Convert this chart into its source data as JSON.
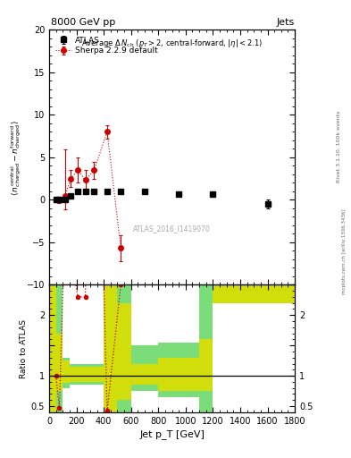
{
  "title_left": "8000 GeV pp",
  "title_right": "Jets",
  "annotation": "ATLAS_2016_I1419070",
  "right_label1": "Rivet 3.1.10, 100k events",
  "right_label2": "mcplots.cern.ch [arXiv:1306.3436]",
  "main_title": "Average Δ N_{ch} (p_T>2, central-forward, |η| < 2.1)",
  "ylabel_ratio": "Ratio to ATLAS",
  "xlabel": "Jet p_T [GeV]",
  "xlim": [
    0,
    1800
  ],
  "ylim_main": [
    -10,
    20
  ],
  "ylim_ratio": [
    0.4,
    2.5
  ],
  "atlas_x": [
    50,
    75,
    115,
    160,
    210,
    265,
    330,
    425,
    525,
    700,
    950,
    1200,
    1600
  ],
  "atlas_y": [
    0.0,
    0.0,
    0.0,
    0.5,
    1.0,
    1.0,
    1.0,
    1.0,
    1.0,
    1.0,
    0.7,
    0.7,
    -0.5
  ],
  "atlas_yerr": [
    0.15,
    0.15,
    0.15,
    0.2,
    0.2,
    0.2,
    0.2,
    0.2,
    0.2,
    0.2,
    0.3,
    0.3,
    0.5
  ],
  "sherpa_x": [
    50,
    75,
    115,
    160,
    210,
    265,
    330,
    425,
    525
  ],
  "sherpa_y": [
    0.0,
    -0.1,
    0.4,
    2.5,
    3.5,
    2.3,
    3.5,
    8.0,
    -5.7
  ],
  "sherpa_yerr_lo": [
    0.2,
    0.3,
    1.5,
    1.0,
    1.5,
    1.2,
    1.0,
    0.8,
    1.5
  ],
  "sherpa_yerr_hi": [
    0.2,
    0.3,
    5.5,
    1.0,
    1.5,
    1.2,
    1.0,
    0.8,
    1.5
  ],
  "ratio_bins": [
    [
      0,
      50,
      0.4,
      2.5,
      0.4,
      2.5
    ],
    [
      50,
      100,
      0.4,
      2.5,
      0.75,
      1.7
    ],
    [
      100,
      150,
      0.8,
      1.3,
      0.88,
      1.25
    ],
    [
      150,
      200,
      0.85,
      1.2,
      0.9,
      1.15
    ],
    [
      200,
      300,
      0.85,
      1.2,
      0.9,
      1.15
    ],
    [
      300,
      400,
      0.85,
      1.2,
      0.9,
      1.15
    ],
    [
      400,
      500,
      0.4,
      2.5,
      0.4,
      2.5
    ],
    [
      500,
      600,
      0.4,
      2.5,
      0.6,
      2.2
    ],
    [
      600,
      800,
      0.75,
      1.5,
      0.85,
      1.2
    ],
    [
      800,
      1100,
      0.65,
      1.55,
      0.75,
      1.3
    ],
    [
      1100,
      1200,
      0.4,
      2.5,
      0.75,
      1.6
    ],
    [
      1200,
      1800,
      2.2,
      2.5,
      2.2,
      2.5
    ]
  ],
  "colors": {
    "atlas": "#000000",
    "sherpa": "#cc0000",
    "green_band": "#33cc33",
    "yellow_band": "#dddd00",
    "ratio_line": "#000000"
  }
}
